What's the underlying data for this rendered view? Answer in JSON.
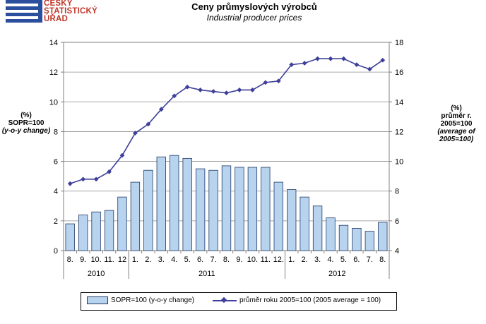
{
  "header": {
    "logo_lines": [
      "ČESKÝ",
      "STATISTICKÝ",
      "ÚŘAD"
    ],
    "brand_red": "#c0392b",
    "brand_blue": "#2b4f9e"
  },
  "chart_data": {
    "type": "bar+line",
    "title": "Ceny průmyslových výrobců",
    "subtitle": "Industrial producer prices",
    "left_axis_label": [
      "(%)",
      "SOPR=100",
      "(y-o-y change)"
    ],
    "right_axis_label": [
      "(%)",
      "průměr r.",
      "2005=100",
      "(average of",
      "2005=100)"
    ],
    "categories": [
      "8.",
      "9.",
      "10.",
      "11.",
      "12",
      "1.",
      "2.",
      "3.",
      "4.",
      "5.",
      "6.",
      "7.",
      "8.",
      "9.",
      "10.",
      "11.",
      "12.",
      "1.",
      "2.",
      "3.",
      "4.",
      "5.",
      "6.",
      "7.",
      "8."
    ],
    "year_labels": [
      {
        "label": "2010",
        "start_index": 0,
        "end_index": 4
      },
      {
        "label": "2011",
        "start_index": 5,
        "end_index": 16
      },
      {
        "label": "2012",
        "start_index": 17,
        "end_index": 24
      }
    ],
    "left_ylim": [
      0,
      14
    ],
    "left_yticks": [
      0,
      2,
      4,
      6,
      8,
      10,
      12,
      14
    ],
    "right_ylim": [
      4,
      18
    ],
    "right_yticks": [
      4,
      6,
      8,
      10,
      12,
      14,
      16,
      18
    ],
    "grid": "horizontal",
    "legend_position": "bottom",
    "series": [
      {
        "name": "SOPR=100 (y-o-y change)",
        "type": "bar",
        "axis": "left",
        "color": "#b8d3ee",
        "values": [
          1.8,
          2.4,
          2.6,
          2.7,
          3.6,
          4.6,
          5.4,
          6.3,
          6.4,
          6.2,
          5.5,
          5.4,
          5.7,
          5.6,
          5.6,
          5.6,
          4.6,
          4.1,
          3.6,
          3.0,
          2.2,
          1.7,
          1.5,
          1.3,
          1.9
        ]
      },
      {
        "name": "průměr roku 2005=100 (2005 average  = 100)",
        "type": "line",
        "axis": "right",
        "color": "#3d3f9a",
        "values": [
          8.5,
          8.8,
          8.8,
          9.3,
          10.4,
          11.9,
          12.5,
          13.5,
          14.4,
          15.0,
          14.8,
          14.7,
          14.6,
          14.8,
          14.8,
          15.3,
          15.4,
          16.5,
          16.6,
          16.9,
          16.9,
          16.9,
          16.5,
          16.2,
          16.8
        ]
      }
    ]
  }
}
